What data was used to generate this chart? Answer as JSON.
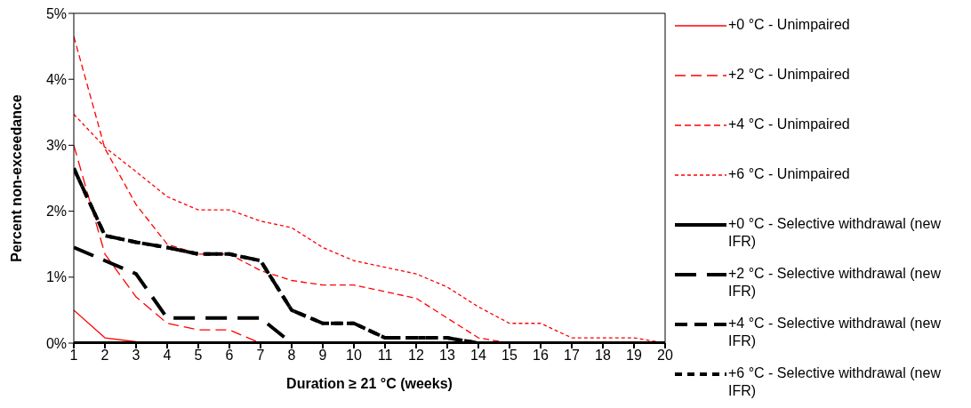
{
  "chart_data": {
    "type": "line",
    "xlabel": "Duration ≥ 21 °C (weeks)",
    "ylabel": "Percent non-exceedance",
    "x": [
      1,
      2,
      3,
      4,
      5,
      6,
      7,
      8,
      9,
      10,
      11,
      12,
      13,
      14,
      15,
      16,
      17,
      18,
      19,
      20
    ],
    "xlim": [
      1,
      20
    ],
    "xticks": [
      1,
      2,
      3,
      4,
      5,
      6,
      7,
      8,
      9,
      10,
      11,
      12,
      13,
      14,
      15,
      16,
      17,
      18,
      19,
      20
    ],
    "ylim": [
      0,
      5
    ],
    "yticks": [
      {
        "value": 0,
        "label": "0%"
      },
      {
        "value": 1,
        "label": "1%"
      },
      {
        "value": 2,
        "label": "2%"
      },
      {
        "value": 3,
        "label": "3%"
      },
      {
        "value": 4,
        "label": "4%"
      },
      {
        "value": 5,
        "label": "5%"
      }
    ],
    "grid": false,
    "legend": "right",
    "marker": "none",
    "series": [
      {
        "name": "+0 °C - Unimpaired",
        "color": "#ff0000",
        "line_style": "solid",
        "values": [
          0.5,
          0.08,
          0.02,
          null,
          null,
          null,
          null,
          null,
          null,
          null,
          null,
          null,
          null,
          null,
          null,
          null,
          null,
          null,
          null,
          null
        ]
      },
      {
        "name": "+2 °C - Unimpaired",
        "color": "#ff0000",
        "line_style": "dashed",
        "values": [
          3.0,
          1.35,
          0.7,
          0.3,
          0.2,
          0.2,
          0,
          0,
          0,
          0,
          0,
          0,
          0,
          0,
          0,
          0,
          0,
          0,
          0,
          0
        ]
      },
      {
        "name": "+4 °C - Unimpaired",
        "color": "#ff0000",
        "line_style": "dashed",
        "values": [
          4.65,
          2.95,
          2.1,
          1.5,
          1.35,
          1.35,
          1.1,
          0.95,
          0.88,
          0.88,
          0.78,
          0.68,
          0.38,
          0.08,
          0,
          0,
          0,
          0,
          0,
          0
        ]
      },
      {
        "name": "+6 °C - Unimpaired",
        "color": "#ff0000",
        "line_style": "dotted",
        "values": [
          3.47,
          2.97,
          2.6,
          2.22,
          2.02,
          2.02,
          1.85,
          1.75,
          1.45,
          1.25,
          1.15,
          1.05,
          0.85,
          0.55,
          0.3,
          0.3,
          0.08,
          0.08,
          0.08,
          0
        ]
      },
      {
        "name": "+0 °C - Selective withdrawal (new IFR)",
        "color": "#000000",
        "line_style": "solid",
        "values": [
          0,
          0,
          0,
          0,
          0,
          0,
          0,
          0,
          0,
          0,
          0,
          0,
          0,
          0,
          0,
          0,
          0,
          0,
          0,
          0
        ]
      },
      {
        "name": "+2 °C - Selective withdrawal (new IFR)",
        "color": "#000000",
        "line_style": "dashed",
        "values": [
          1.45,
          1.25,
          1.05,
          0.38,
          0.38,
          0.38,
          0.38,
          0,
          0,
          0,
          0,
          0,
          0,
          0,
          0,
          0,
          0,
          0,
          0,
          0
        ]
      },
      {
        "name": "+4 °C - Selective withdrawal (new IFR)",
        "color": "#000000",
        "line_style": "dashed",
        "values": [
          2.65,
          1.63,
          1.53,
          1.45,
          1.35,
          1.35,
          1.25,
          0.5,
          0.3,
          0.3,
          0.08,
          0.08,
          0.08,
          0,
          0,
          0,
          0,
          0,
          0,
          0
        ]
      },
      {
        "name": "+6 °C - Selective withdrawal (new IFR)",
        "color": "#000000",
        "line_style": "dotted",
        "values": [
          2.65,
          1.63,
          1.53,
          1.45,
          1.35,
          1.35,
          1.25,
          0.5,
          0.3,
          0.3,
          0.08,
          0.08,
          0.08,
          0,
          0,
          0,
          0,
          0,
          0,
          0
        ]
      }
    ]
  }
}
